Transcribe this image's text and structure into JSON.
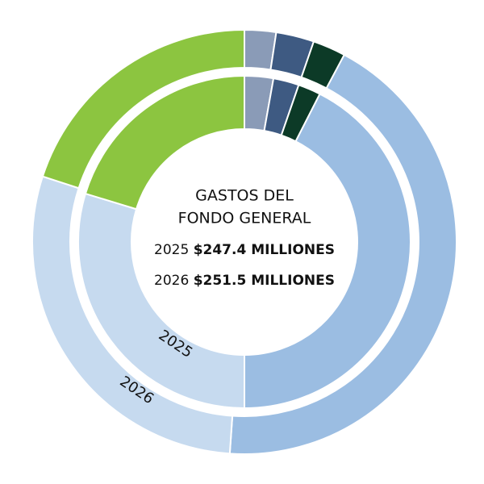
{
  "chart_data": {
    "type": "donut",
    "title_lines": [
      "GASTOS DEL",
      "FONDO GENERAL"
    ],
    "totals": [
      {
        "year": "2025",
        "amount": "$247.4 MILLIONES"
      },
      {
        "year": "2026",
        "amount": "$251.5 MILLIONES"
      }
    ],
    "categories": [
      null,
      null,
      null,
      null,
      null,
      null
    ],
    "colors": [
      "#8a9bb7",
      "#3e5a82",
      "#0c3a27",
      "#9bbde2",
      "#c6daef",
      "#8cc540"
    ],
    "series": [
      {
        "name": "2025",
        "values": [
          2.8,
          2.5,
          2.2,
          42.5,
          29.7,
          20.3
        ]
      },
      {
        "name": "2026",
        "values": [
          2.4,
          2.9,
          2.5,
          43.3,
          28.9,
          20.0
        ]
      }
    ]
  }
}
